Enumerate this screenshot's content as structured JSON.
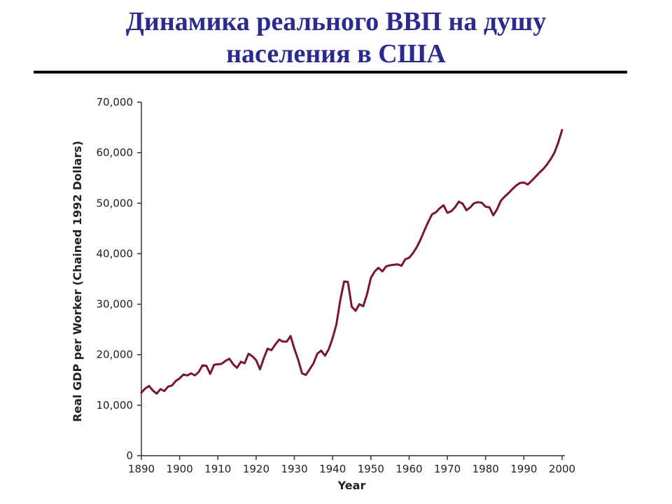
{
  "slide": {
    "title_line1": "Динамика реального ВВП на душу",
    "title_line2": "населения в США"
  },
  "chart_data": {
    "type": "line",
    "xlabel": "Year",
    "ylabel": "Real GDP per Worker (Chained 1992 Dollars)",
    "xlim": [
      1890,
      2000
    ],
    "ylim": [
      0,
      70000
    ],
    "x_ticks": [
      1890,
      1900,
      1910,
      1920,
      1930,
      1940,
      1950,
      1960,
      1970,
      1980,
      1990,
      2000
    ],
    "y_ticks": [
      0,
      10000,
      20000,
      30000,
      40000,
      50000,
      60000,
      70000
    ],
    "y_tick_labels": [
      "0",
      "10,000",
      "20,000",
      "30,000",
      "40,000",
      "50,000",
      "60,000",
      "70,000"
    ],
    "line_color": "#7a1530",
    "grid": false,
    "series": [
      {
        "x": [
          1890,
          1891,
          1892,
          1893,
          1894,
          1895,
          1896,
          1897,
          1898,
          1899,
          1900,
          1901,
          1902,
          1903,
          1904,
          1905,
          1906,
          1907,
          1908,
          1909,
          1910,
          1911,
          1912,
          1913,
          1914,
          1915,
          1916,
          1917,
          1918,
          1919,
          1920,
          1921,
          1922,
          1923,
          1924,
          1925,
          1926,
          1927,
          1928,
          1929,
          1930,
          1931,
          1932,
          1933,
          1934,
          1935,
          1936,
          1937,
          1938,
          1939,
          1940,
          1941,
          1942,
          1943,
          1944,
          1945,
          1946,
          1947,
          1948,
          1949,
          1950,
          1951,
          1952,
          1953,
          1954,
          1955,
          1956,
          1957,
          1958,
          1959,
          1960,
          1961,
          1962,
          1963,
          1964,
          1965,
          1966,
          1967,
          1968,
          1969,
          1970,
          1971,
          1972,
          1973,
          1974,
          1975,
          1976,
          1977,
          1978,
          1979,
          1980,
          1981,
          1982,
          1983,
          1984,
          1985,
          1986,
          1987,
          1988,
          1989,
          1990,
          1991,
          1992,
          1993,
          1994,
          1995,
          1996,
          1997,
          1998,
          1999,
          2000
        ],
        "values": [
          12500,
          13300,
          13800,
          12900,
          12300,
          13200,
          12800,
          13700,
          13900,
          14800,
          15300,
          16100,
          15900,
          16300,
          15900,
          16600,
          17900,
          17800,
          16200,
          18000,
          18100,
          18200,
          18800,
          19200,
          18100,
          17400,
          18600,
          18300,
          20200,
          19700,
          18900,
          17100,
          19300,
          21200,
          20900,
          22000,
          23000,
          22600,
          22600,
          23700,
          21200,
          19000,
          16300,
          16000,
          17100,
          18300,
          20200,
          20800,
          19800,
          21100,
          23300,
          26000,
          30800,
          34500,
          34400,
          29500,
          28700,
          30000,
          29600,
          32000,
          35200,
          36500,
          37200,
          36500,
          37500,
          37700,
          37800,
          37900,
          37600,
          38900,
          39200,
          40100,
          41300,
          42800,
          44600,
          46300,
          47800,
          48200,
          49000,
          49600,
          48100,
          48400,
          49200,
          50300,
          49900,
          48600,
          49200,
          50000,
          50200,
          50100,
          49300,
          49200,
          47600,
          48800,
          50500,
          51300,
          52000,
          52800,
          53500,
          54000,
          54100,
          53700,
          54400,
          55200,
          56000,
          56700,
          57600,
          58700,
          60000,
          62000,
          64500
        ]
      }
    ]
  }
}
